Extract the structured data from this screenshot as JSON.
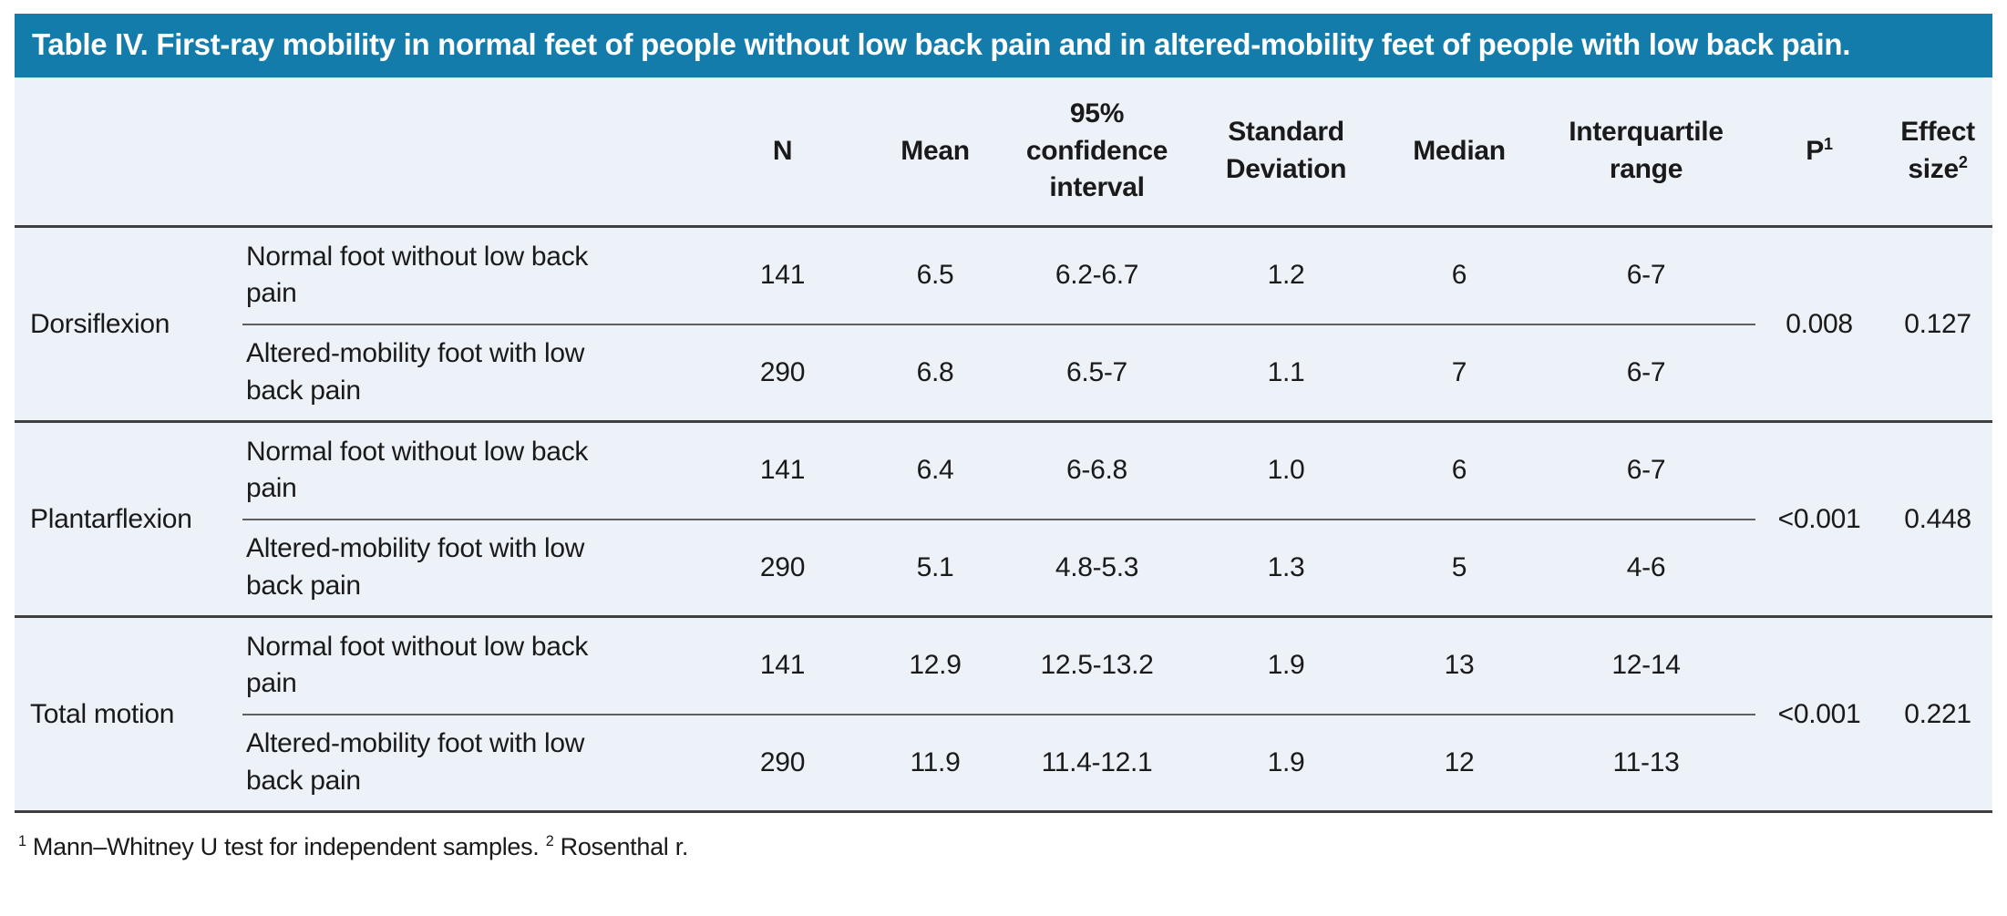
{
  "header": {
    "title": "Table IV. First-ray mobility in normal feet of people without low back pain and in altered-mobility feet of people with low back pain."
  },
  "columns": {
    "category": "",
    "group": "",
    "n": "N",
    "mean": "Mean",
    "ci": "95% confidence interval",
    "sd": "Standard Deviation",
    "median": "Median",
    "iqr": "Interquartile range",
    "p": "P",
    "p_sup": "1",
    "effect": "Effect size",
    "effect_sup": "2"
  },
  "sections": [
    {
      "label": "Dorsiflexion",
      "p": "0.008",
      "effect_size": "0.127",
      "rows": [
        {
          "group": "Normal foot without low back pain",
          "n": "141",
          "mean": "6.5",
          "ci": "6.2-6.7",
          "sd": "1.2",
          "median": "6",
          "iqr": "6-7"
        },
        {
          "group": "Altered-mobility foot with low back pain",
          "n": "290",
          "mean": "6.8",
          "ci": "6.5-7",
          "sd": "1.1",
          "median": "7",
          "iqr": "6-7"
        }
      ]
    },
    {
      "label": "Plantarflexion",
      "p": "<0.001",
      "effect_size": "0.448",
      "rows": [
        {
          "group": "Normal foot without low back pain",
          "n": "141",
          "mean": "6.4",
          "ci": "6-6.8",
          "sd": "1.0",
          "median": "6",
          "iqr": "6-7"
        },
        {
          "group": "Altered-mobility foot with low back pain",
          "n": "290",
          "mean": "5.1",
          "ci": "4.8-5.3",
          "sd": "1.3",
          "median": "5",
          "iqr": "4-6"
        }
      ]
    },
    {
      "label": "Total motion",
      "p": "<0.001",
      "effect_size": "0.221",
      "rows": [
        {
          "group": "Normal foot without low back pain",
          "n": "141",
          "mean": "12.9",
          "ci": "12.5-13.2",
          "sd": "1.9",
          "median": "13",
          "iqr": "12-14"
        },
        {
          "group": "Altered-mobility foot with low back pain",
          "n": "290",
          "mean": "11.9",
          "ci": "11.4-12.1",
          "sd": "1.9",
          "median": "12",
          "iqr": "11-13"
        }
      ]
    }
  ],
  "footnotes": [
    {
      "sup": "1",
      "text": "Mann–Whitney U test for independent samples."
    },
    {
      "sup": "2",
      "text": "Rosenthal r."
    }
  ],
  "colors": {
    "banner_bg": "#147CAB",
    "banner_text": "#FFFFFF",
    "body_bg": "#EDF1F8",
    "text": "#1A1A1A",
    "heavy_rule": "#3F3F3F",
    "light_rule": "#5F5F5F"
  }
}
